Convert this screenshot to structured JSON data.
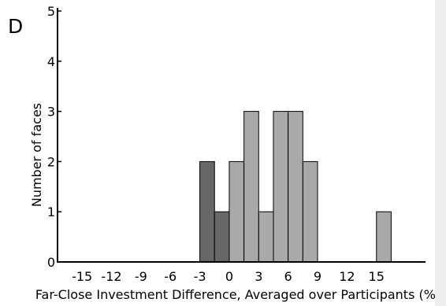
{
  "panel_label": "D",
  "chart_data": {
    "type": "bar",
    "title": "",
    "xlabel": "Far-Close Investment Difference, Averaged over Participants (%)",
    "ylabel": "Number of faces",
    "xlim": [
      -17.5,
      20
    ],
    "ylim": [
      0,
      5
    ],
    "x_ticks": [
      -15,
      -12,
      -9,
      -6,
      -3,
      0,
      3,
      6,
      9,
      12,
      15
    ],
    "x_tick_labels": [
      "-15",
      "-12",
      "-9",
      "-6",
      "-3",
      "0",
      "3",
      "6",
      "9",
      "12",
      "15"
    ],
    "y_ticks": [
      0,
      1,
      2,
      3,
      4,
      5
    ],
    "y_tick_labels": [
      "0",
      "1",
      "2",
      "3",
      "4",
      "5"
    ],
    "bin_width": 1.5,
    "bars": [
      {
        "x0": -3.0,
        "x1": -1.5,
        "value": 2,
        "color": "#676767"
      },
      {
        "x0": -1.5,
        "x1": 0.0,
        "value": 1,
        "color": "#676767"
      },
      {
        "x0": 0.0,
        "x1": 1.5,
        "value": 2,
        "color": "#a9a9a9"
      },
      {
        "x0": 1.5,
        "x1": 3.0,
        "value": 3,
        "color": "#a9a9a9"
      },
      {
        "x0": 3.0,
        "x1": 4.5,
        "value": 1,
        "color": "#a9a9a9"
      },
      {
        "x0": 4.5,
        "x1": 6.0,
        "value": 3,
        "color": "#a9a9a9"
      },
      {
        "x0": 6.0,
        "x1": 7.5,
        "value": 3,
        "color": "#a9a9a9"
      },
      {
        "x0": 7.5,
        "x1": 9.0,
        "value": 2,
        "color": "#a9a9a9"
      },
      {
        "x0": 15.0,
        "x1": 16.5,
        "value": 1,
        "color": "#a9a9a9"
      }
    ],
    "grid": false,
    "legend": "none"
  }
}
